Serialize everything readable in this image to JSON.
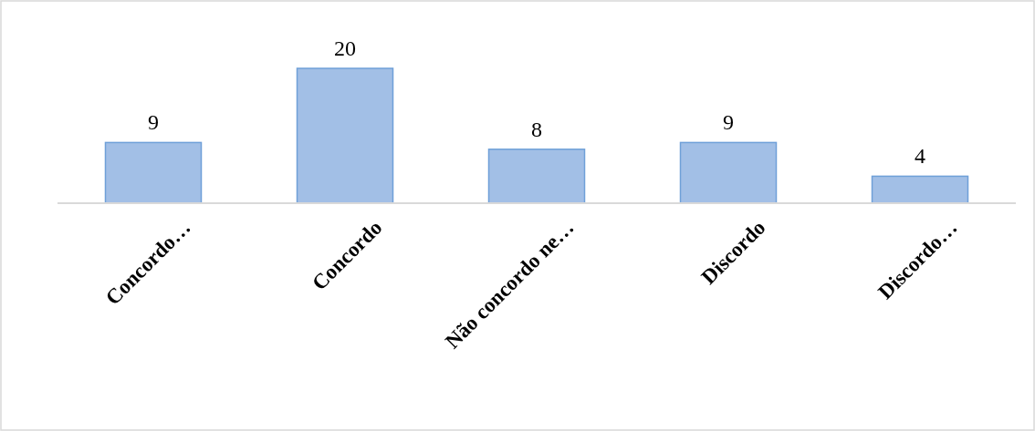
{
  "chart_data": {
    "type": "bar",
    "categories": [
      "Concordo…",
      "Concordo",
      "Não concordo ne…",
      "Discordo",
      "Discordo…"
    ],
    "values": [
      9,
      20,
      8,
      9,
      4
    ],
    "color": "#a2bfe6",
    "data_labels": true
  }
}
